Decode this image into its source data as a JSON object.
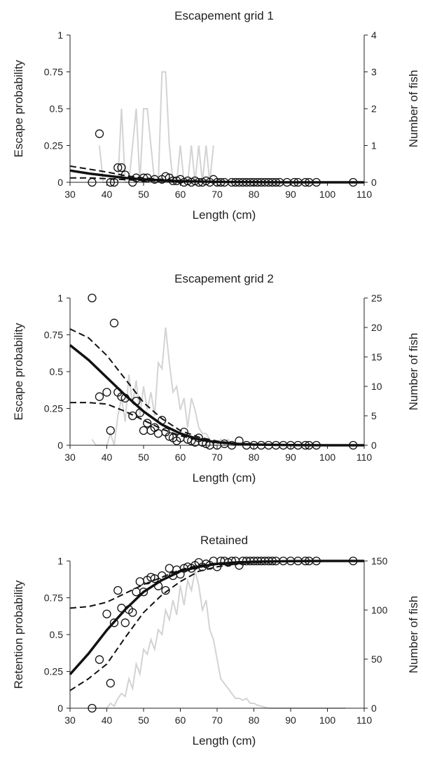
{
  "chart_data": [
    {
      "type": "line",
      "title": "Escapement grid 1",
      "xlabel": "Length (cm)",
      "ylabel": "Escape probability",
      "y2label": "Number of fish",
      "xlim": [
        30,
        110
      ],
      "ylim": [
        0,
        1
      ],
      "y2lim": [
        0,
        4
      ],
      "xticks": [
        30,
        40,
        50,
        60,
        70,
        80,
        90,
        100,
        110
      ],
      "yticks": [
        0,
        0.25,
        0.5,
        0.75,
        1
      ],
      "ytick_labels": [
        "0",
        "0.25",
        "0.5",
        "0.75",
        "1"
      ],
      "y2ticks": [
        0,
        1,
        2,
        3,
        4
      ],
      "fit": {
        "x": [
          30,
          35,
          40,
          45,
          50,
          55,
          60,
          65,
          70,
          75,
          80,
          90,
          100,
          110
        ],
        "y": [
          0.08,
          0.06,
          0.045,
          0.03,
          0.02,
          0.013,
          0.008,
          0.005,
          0.003,
          0.002,
          0.001,
          0,
          0,
          0
        ]
      },
      "ci_upper": {
        "x": [
          30,
          35,
          40,
          45,
          50,
          55,
          60,
          65,
          70,
          75,
          80,
          90,
          100,
          110
        ],
        "y": [
          0.11,
          0.09,
          0.07,
          0.045,
          0.03,
          0.02,
          0.012,
          0.007,
          0.004,
          0.002,
          0.001,
          0,
          0,
          0
        ]
      },
      "ci_lower": {
        "x": [
          30,
          35,
          40,
          45,
          50,
          55,
          60,
          65,
          70,
          75,
          80,
          90,
          100,
          110
        ],
        "y": [
          0.03,
          0.03,
          0.025,
          0.018,
          0.012,
          0.008,
          0.005,
          0.003,
          0.002,
          0.001,
          0,
          0,
          0,
          0
        ]
      },
      "observed": {
        "x": [
          36,
          38,
          41,
          42,
          43,
          44,
          45,
          47,
          48,
          50,
          51,
          53,
          55,
          56,
          57,
          58,
          59,
          60,
          61,
          62,
          63,
          64,
          65,
          66,
          67,
          68,
          69,
          70,
          71,
          72,
          74,
          75,
          76,
          77,
          78,
          79,
          80,
          81,
          82,
          83,
          84,
          85,
          86,
          87,
          89,
          91,
          92,
          94,
          95,
          97,
          107
        ],
        "y": [
          0,
          0.33,
          0,
          0,
          0.1,
          0.1,
          0.05,
          0,
          0.03,
          0.03,
          0.03,
          0.02,
          0.02,
          0.04,
          0.03,
          0.01,
          0.01,
          0.02,
          0,
          0.01,
          0,
          0.01,
          0,
          0,
          0.01,
          0,
          0.02,
          0,
          0,
          0,
          0,
          0,
          0,
          0,
          0,
          0,
          0,
          0,
          0,
          0,
          0,
          0,
          0,
          0,
          0,
          0,
          0,
          0,
          0,
          0,
          0
        ]
      },
      "n_fish": {
        "x": [
          38,
          39,
          40,
          41,
          42,
          43,
          44,
          45,
          46,
          47,
          48,
          49,
          50,
          51,
          52,
          53,
          54,
          55,
          56,
          57,
          58,
          59,
          60,
          61,
          62,
          63,
          64,
          65,
          66,
          67,
          68,
          69
        ],
        "y": [
          1,
          0,
          0,
          0,
          0,
          0,
          2,
          0,
          0,
          1,
          2,
          0,
          2,
          2,
          1,
          0,
          0,
          3,
          3,
          1,
          0,
          0,
          1,
          0,
          0,
          1,
          0,
          1,
          0,
          1,
          0,
          1
        ]
      }
    },
    {
      "type": "line",
      "title": "Escapement grid 2",
      "xlabel": "Length (cm)",
      "ylabel": "Escape probability",
      "y2label": "Number of fish",
      "xlim": [
        30,
        110
      ],
      "ylim": [
        0,
        1
      ],
      "y2lim": [
        0,
        25
      ],
      "xticks": [
        30,
        40,
        50,
        60,
        70,
        80,
        90,
        100,
        110
      ],
      "yticks": [
        0,
        0.25,
        0.5,
        0.75,
        1
      ],
      "ytick_labels": [
        "0",
        "0.25",
        "0.5",
        "0.75",
        "1"
      ],
      "y2ticks": [
        0,
        5,
        10,
        15,
        20,
        25
      ],
      "fit": {
        "x": [
          30,
          35,
          40,
          45,
          50,
          55,
          60,
          65,
          70,
          75,
          80,
          90,
          100,
          110
        ],
        "y": [
          0.68,
          0.58,
          0.46,
          0.34,
          0.23,
          0.14,
          0.08,
          0.04,
          0.02,
          0.01,
          0.005,
          0.001,
          0,
          0
        ]
      },
      "ci_upper": {
        "x": [
          30,
          35,
          40,
          45,
          50,
          55,
          60,
          65,
          70,
          75,
          80,
          90,
          100,
          110
        ],
        "y": [
          0.79,
          0.73,
          0.61,
          0.45,
          0.29,
          0.18,
          0.1,
          0.055,
          0.028,
          0.013,
          0.006,
          0.001,
          0,
          0
        ]
      },
      "ci_lower": {
        "x": [
          30,
          35,
          40,
          45,
          50,
          55,
          60,
          65,
          70,
          75,
          80,
          90,
          100,
          110
        ],
        "y": [
          0.29,
          0.29,
          0.28,
          0.23,
          0.17,
          0.11,
          0.065,
          0.035,
          0.018,
          0.008,
          0.004,
          0.001,
          0,
          0
        ]
      },
      "observed": {
        "x": [
          36,
          38,
          40,
          41,
          42,
          43,
          44,
          45,
          47,
          48,
          49,
          50,
          51,
          52,
          53,
          54,
          55,
          56,
          57,
          58,
          59,
          60,
          61,
          62,
          63,
          64,
          65,
          66,
          67,
          68,
          70,
          72,
          74,
          76,
          78,
          80,
          82,
          84,
          86,
          88,
          90,
          92,
          94,
          95,
          97,
          107
        ],
        "y": [
          1,
          0.33,
          0.36,
          0.1,
          0.83,
          0.36,
          0.33,
          0.32,
          0.2,
          0.3,
          0.22,
          0.1,
          0.15,
          0.1,
          0.12,
          0.08,
          0.17,
          0.09,
          0.06,
          0.05,
          0.03,
          0.05,
          0.09,
          0.04,
          0.03,
          0.02,
          0.05,
          0.02,
          0.01,
          0,
          0,
          0.01,
          0,
          0.03,
          0,
          0,
          0,
          0,
          0,
          0,
          0,
          0,
          0,
          0,
          0,
          0
        ]
      },
      "n_fish": {
        "x": [
          36,
          37,
          38,
          39,
          40,
          41,
          42,
          43,
          44,
          45,
          46,
          47,
          48,
          49,
          50,
          51,
          52,
          53,
          54,
          55,
          56,
          57,
          58,
          59,
          60,
          61,
          62,
          63,
          64,
          65,
          66,
          67,
          68,
          69,
          70,
          71,
          72,
          73,
          74,
          75,
          76,
          77,
          78,
          79,
          80,
          82,
          84,
          86,
          88,
          90,
          95,
          100,
          105,
          110
        ],
        "y": [
          1,
          0,
          0,
          0,
          0,
          2,
          0,
          5,
          8,
          4,
          12,
          7,
          11,
          5,
          10,
          6,
          9,
          5,
          14,
          13,
          20,
          14,
          9,
          10,
          6,
          8,
          3,
          8,
          6,
          3,
          2,
          2,
          1,
          0,
          0,
          1,
          0,
          1,
          0,
          0,
          0,
          0,
          0,
          0,
          0,
          0,
          0,
          0,
          0,
          0,
          0,
          0,
          0,
          0
        ]
      }
    },
    {
      "type": "line",
      "title": "Retained",
      "xlabel": "Length (cm)",
      "ylabel": "Retention probability",
      "y2label": "Number of fish",
      "xlim": [
        30,
        110
      ],
      "ylim": [
        0,
        1
      ],
      "y2lim": [
        0,
        150
      ],
      "xticks": [
        30,
        40,
        50,
        60,
        70,
        80,
        90,
        100,
        110
      ],
      "yticks": [
        0,
        0.25,
        0.5,
        0.75,
        1
      ],
      "ytick_labels": [
        "0",
        "0.25",
        "0.5",
        "0.75",
        "1"
      ],
      "y2ticks": [
        0,
        50,
        100,
        150
      ],
      "fit": {
        "x": [
          30,
          35,
          40,
          45,
          50,
          55,
          60,
          65,
          70,
          75,
          80,
          90,
          100,
          110
        ],
        "y": [
          0.23,
          0.37,
          0.53,
          0.67,
          0.79,
          0.87,
          0.93,
          0.96,
          0.98,
          0.99,
          0.995,
          0.999,
          1,
          1
        ]
      },
      "ci_upper": {
        "x": [
          30,
          35,
          40,
          45,
          50,
          55,
          60,
          65,
          70,
          75,
          80,
          90,
          100,
          110
        ],
        "y": [
          0.68,
          0.69,
          0.72,
          0.78,
          0.84,
          0.89,
          0.94,
          0.97,
          0.985,
          0.993,
          0.997,
          1,
          1,
          1
        ]
      },
      "ci_lower": {
        "x": [
          30,
          35,
          40,
          45,
          50,
          55,
          60,
          65,
          70,
          75,
          80,
          90,
          100,
          110
        ],
        "y": [
          0.12,
          0.2,
          0.3,
          0.48,
          0.65,
          0.77,
          0.86,
          0.93,
          0.96,
          0.98,
          0.99,
          0.998,
          1,
          1
        ]
      },
      "observed": {
        "x": [
          36,
          38,
          40,
          41,
          42,
          43,
          44,
          45,
          46,
          47,
          48,
          49,
          50,
          51,
          52,
          53,
          54,
          55,
          56,
          57,
          58,
          59,
          60,
          61,
          62,
          63,
          64,
          65,
          66,
          67,
          68,
          69,
          70,
          71,
          72,
          73,
          74,
          75,
          76,
          77,
          78,
          79,
          80,
          81,
          82,
          83,
          84,
          85,
          86,
          88,
          90,
          92,
          94,
          95,
          97,
          107
        ],
        "y": [
          0,
          0.33,
          0.64,
          0.17,
          0.58,
          0.8,
          0.68,
          0.58,
          0.67,
          0.65,
          0.79,
          0.86,
          0.79,
          0.87,
          0.89,
          0.88,
          0.83,
          0.9,
          0.8,
          0.95,
          0.9,
          0.94,
          0.91,
          0.95,
          0.96,
          0.95,
          0.97,
          0.99,
          0.96,
          0.98,
          0.97,
          1,
          0.96,
          1,
          1,
          0.99,
          1,
          1,
          0.97,
          1,
          1,
          1,
          1,
          1,
          1,
          1,
          1,
          1,
          1,
          1,
          1,
          1,
          1,
          1,
          1,
          1
        ]
      },
      "n_fish": {
        "x": [
          36,
          38,
          40,
          41,
          42,
          43,
          44,
          45,
          46,
          47,
          48,
          49,
          50,
          51,
          52,
          53,
          54,
          55,
          56,
          57,
          58,
          59,
          60,
          61,
          62,
          63,
          64,
          65,
          66,
          67,
          68,
          69,
          70,
          71,
          72,
          73,
          74,
          75,
          76,
          77,
          78,
          79,
          80,
          81,
          82,
          83,
          84,
          86,
          88,
          90,
          95,
          100,
          105
        ],
        "y": [
          0,
          0,
          0,
          5,
          2,
          10,
          15,
          12,
          30,
          20,
          45,
          35,
          60,
          55,
          70,
          60,
          80,
          75,
          100,
          90,
          110,
          95,
          125,
          105,
          130,
          120,
          140,
          125,
          100,
          110,
          80,
          70,
          50,
          30,
          25,
          20,
          15,
          10,
          10,
          8,
          10,
          5,
          5,
          3,
          2,
          1,
          0,
          0,
          0,
          0,
          0,
          0,
          0
        ]
      }
    }
  ]
}
